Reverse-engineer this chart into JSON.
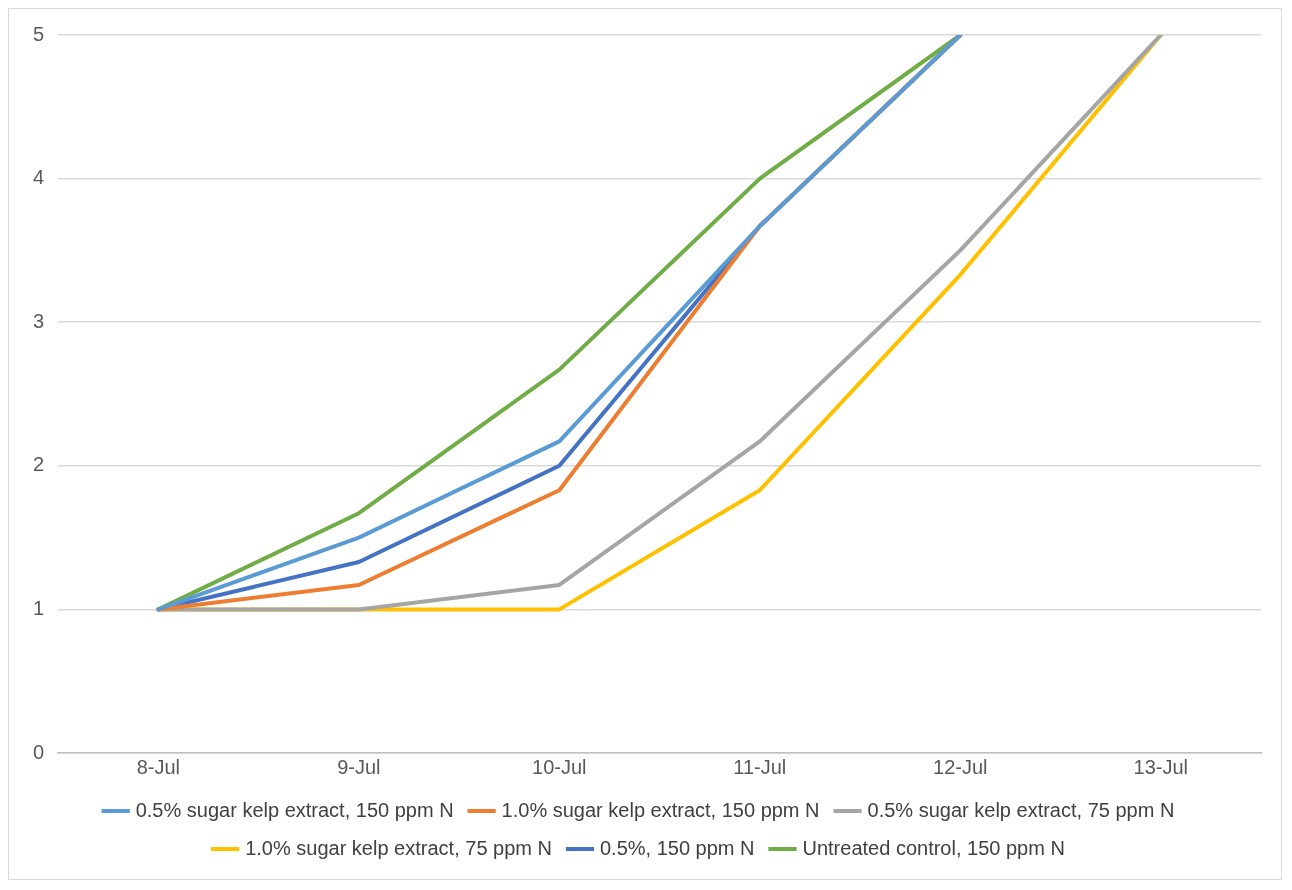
{
  "chart_data": {
    "type": "line",
    "categories": [
      "8-Jul",
      "9-Jul",
      "10-Jul",
      "11-Jul",
      "12-Jul",
      "13-Jul"
    ],
    "series": [
      {
        "name": "0.5% sugar kelp extract, 150 ppm N",
        "color": "#5b9bd5",
        "values": [
          1,
          1.5,
          2.17,
          3.67,
          5,
          null
        ]
      },
      {
        "name": "1.0% sugar kelp extract, 150 ppm N",
        "color": "#ed7d31",
        "values": [
          1,
          1.17,
          1.83,
          3.67,
          5,
          null
        ]
      },
      {
        "name": "0.5% sugar kelp extract, 75 ppm N",
        "color": "#a5a5a5",
        "values": [
          1,
          1,
          1.17,
          2.17,
          3.5,
          5
        ]
      },
      {
        "name": "1.0% sugar kelp extract, 75 ppm N",
        "color": "#ffc000",
        "values": [
          1,
          1,
          1,
          1.83,
          3.33,
          5
        ]
      },
      {
        "name": "0.5%, 150 ppm N",
        "color": "#4472c4",
        "values": [
          1,
          1.33,
          2,
          3.67,
          5,
          null
        ]
      },
      {
        "name": "Untreated control, 150 ppm N",
        "color": "#70ad47",
        "values": [
          1,
          1.67,
          2.67,
          4,
          5,
          null
        ]
      }
    ],
    "ylim": [
      0,
      5
    ],
    "yticks": [
      0,
      1,
      2,
      3,
      4,
      5
    ],
    "grid": "y",
    "legend": "bottom",
    "marker": "none",
    "line_style": "solid"
  }
}
